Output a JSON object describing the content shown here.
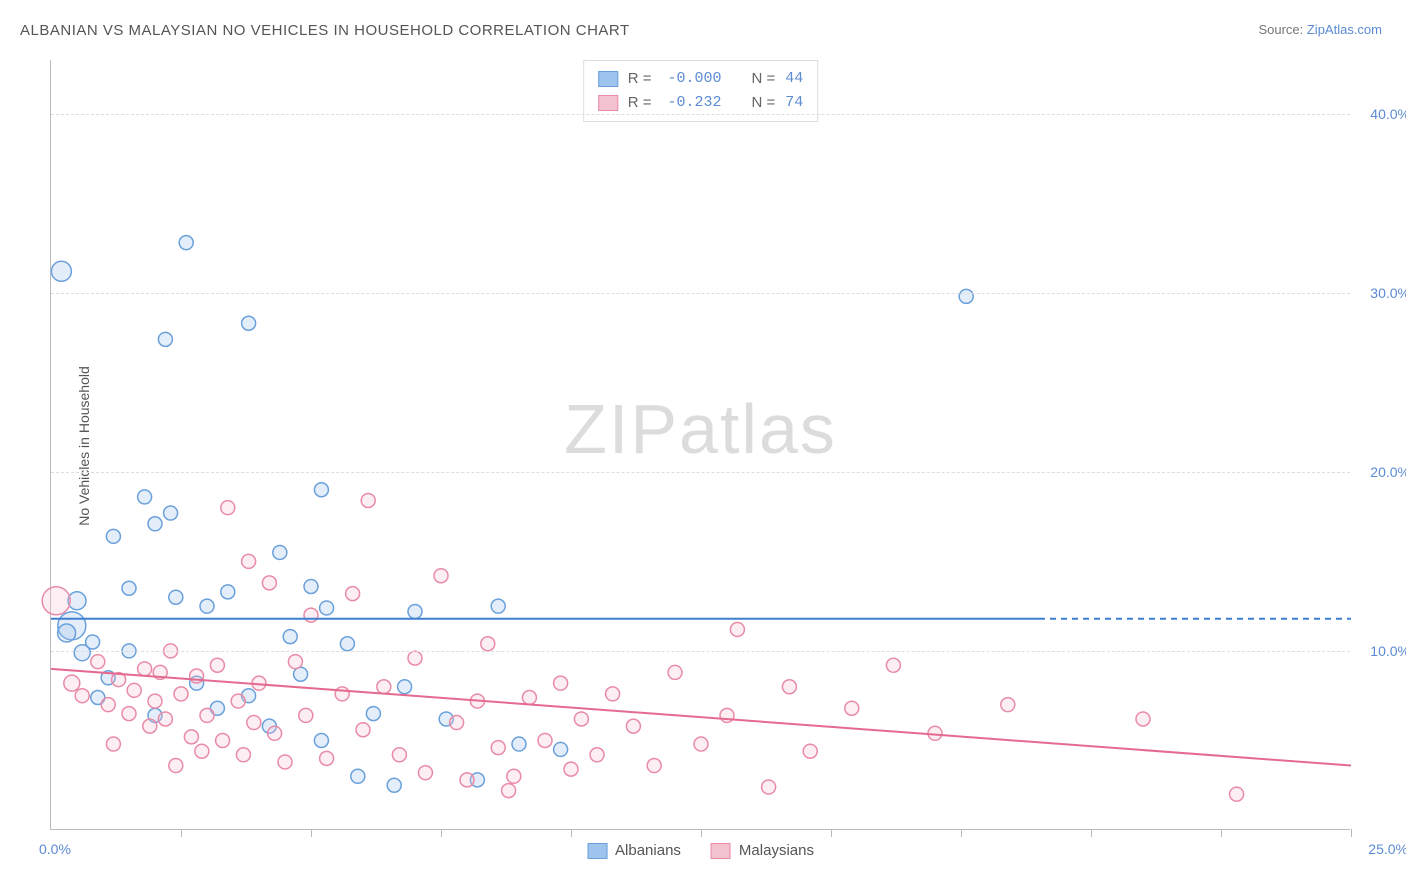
{
  "title": "ALBANIAN VS MALAYSIAN NO VEHICLES IN HOUSEHOLD CORRELATION CHART",
  "source_prefix": "Source: ",
  "source_link": "ZipAtlas.com",
  "ylabel": "No Vehicles in Household",
  "watermark_zip": "ZIP",
  "watermark_atlas": "atlas",
  "chart": {
    "type": "scatter",
    "xlim": [
      0,
      25
    ],
    "ylim": [
      0,
      43
    ],
    "x_tick_step": 2.5,
    "y_gridlines": [
      10,
      20,
      30,
      40
    ],
    "y_tick_labels": [
      "10.0%",
      "20.0%",
      "30.0%",
      "40.0%"
    ],
    "x_min_label": "0.0%",
    "x_max_label": "25.0%",
    "background_color": "#ffffff",
    "grid_color": "#dddddd",
    "axis_color": "#bbbbbb",
    "tick_label_color": "#5b8bd4",
    "marker_stroke_width": 1.5,
    "marker_fill_opacity": 0.28,
    "trendline_width": 2,
    "series": [
      {
        "name": "Albanians",
        "color_fill": "#9ec3ec",
        "color_stroke": "#6aa0db",
        "trend_color": "#3f7fd1",
        "R": "-0.000",
        "N": "44",
        "trend": {
          "x1": 0,
          "y1": 11.8,
          "x2": 19,
          "y2": 11.8,
          "dashed_to": 25
        },
        "points": [
          {
            "x": 0.2,
            "y": 31.2,
            "r": 10
          },
          {
            "x": 2.6,
            "y": 32.8,
            "r": 7
          },
          {
            "x": 3.8,
            "y": 28.3,
            "r": 7
          },
          {
            "x": 2.2,
            "y": 27.4,
            "r": 7
          },
          {
            "x": 1.8,
            "y": 18.6,
            "r": 7
          },
          {
            "x": 2.3,
            "y": 17.7,
            "r": 7
          },
          {
            "x": 2.0,
            "y": 17.1,
            "r": 7
          },
          {
            "x": 1.2,
            "y": 16.4,
            "r": 7
          },
          {
            "x": 0.5,
            "y": 12.8,
            "r": 9
          },
          {
            "x": 0.4,
            "y": 11.4,
            "r": 14
          },
          {
            "x": 0.6,
            "y": 9.9,
            "r": 8
          },
          {
            "x": 0.3,
            "y": 11.0,
            "r": 9
          },
          {
            "x": 0.8,
            "y": 10.5,
            "r": 7
          },
          {
            "x": 1.5,
            "y": 10.0,
            "r": 7
          },
          {
            "x": 1.1,
            "y": 8.5,
            "r": 7
          },
          {
            "x": 2.4,
            "y": 13.0,
            "r": 7
          },
          {
            "x": 3.0,
            "y": 12.5,
            "r": 7
          },
          {
            "x": 3.4,
            "y": 13.3,
            "r": 7
          },
          {
            "x": 4.4,
            "y": 15.5,
            "r": 7
          },
          {
            "x": 5.2,
            "y": 19.0,
            "r": 7
          },
          {
            "x": 5.0,
            "y": 13.6,
            "r": 7
          },
          {
            "x": 5.3,
            "y": 12.4,
            "r": 7
          },
          {
            "x": 5.7,
            "y": 10.4,
            "r": 7
          },
          {
            "x": 4.8,
            "y": 8.7,
            "r": 7
          },
          {
            "x": 3.8,
            "y": 7.5,
            "r": 7
          },
          {
            "x": 4.2,
            "y": 5.8,
            "r": 7
          },
          {
            "x": 5.2,
            "y": 5.0,
            "r": 7
          },
          {
            "x": 5.9,
            "y": 3.0,
            "r": 7
          },
          {
            "x": 6.2,
            "y": 6.5,
            "r": 7
          },
          {
            "x": 6.6,
            "y": 2.5,
            "r": 7
          },
          {
            "x": 6.8,
            "y": 8.0,
            "r": 7
          },
          {
            "x": 7.0,
            "y": 12.2,
            "r": 7
          },
          {
            "x": 7.6,
            "y": 6.2,
            "r": 7
          },
          {
            "x": 8.2,
            "y": 2.8,
            "r": 7
          },
          {
            "x": 8.6,
            "y": 12.5,
            "r": 7
          },
          {
            "x": 9.0,
            "y": 4.8,
            "r": 7
          },
          {
            "x": 9.8,
            "y": 4.5,
            "r": 7
          },
          {
            "x": 2.8,
            "y": 8.2,
            "r": 7
          },
          {
            "x": 2.0,
            "y": 6.4,
            "r": 7
          },
          {
            "x": 3.2,
            "y": 6.8,
            "r": 7
          },
          {
            "x": 4.6,
            "y": 10.8,
            "r": 7
          },
          {
            "x": 17.6,
            "y": 29.8,
            "r": 7
          },
          {
            "x": 1.5,
            "y": 13.5,
            "r": 7
          },
          {
            "x": 0.9,
            "y": 7.4,
            "r": 7
          }
        ]
      },
      {
        "name": "Malaysians",
        "color_fill": "#f4c1cf",
        "color_stroke": "#e98ba7",
        "trend_color": "#e46a8f",
        "R": "-0.232",
        "N": "74",
        "trend": {
          "x1": 0,
          "y1": 9.0,
          "x2": 25,
          "y2": 3.6
        },
        "points": [
          {
            "x": 0.1,
            "y": 12.8,
            "r": 14
          },
          {
            "x": 0.4,
            "y": 8.2,
            "r": 8
          },
          {
            "x": 0.6,
            "y": 7.5,
            "r": 7
          },
          {
            "x": 0.9,
            "y": 9.4,
            "r": 7
          },
          {
            "x": 1.1,
            "y": 7.0,
            "r": 7
          },
          {
            "x": 1.3,
            "y": 8.4,
            "r": 7
          },
          {
            "x": 1.5,
            "y": 6.5,
            "r": 7
          },
          {
            "x": 1.6,
            "y": 7.8,
            "r": 7
          },
          {
            "x": 1.8,
            "y": 9.0,
            "r": 7
          },
          {
            "x": 1.9,
            "y": 5.8,
            "r": 7
          },
          {
            "x": 2.0,
            "y": 7.2,
            "r": 7
          },
          {
            "x": 2.1,
            "y": 8.8,
            "r": 7
          },
          {
            "x": 2.2,
            "y": 6.2,
            "r": 7
          },
          {
            "x": 2.3,
            "y": 10.0,
            "r": 7
          },
          {
            "x": 2.5,
            "y": 7.6,
            "r": 7
          },
          {
            "x": 2.7,
            "y": 5.2,
            "r": 7
          },
          {
            "x": 2.8,
            "y": 8.6,
            "r": 7
          },
          {
            "x": 2.9,
            "y": 4.4,
            "r": 7
          },
          {
            "x": 3.0,
            "y": 6.4,
            "r": 7
          },
          {
            "x": 3.2,
            "y": 9.2,
            "r": 7
          },
          {
            "x": 3.3,
            "y": 5.0,
            "r": 7
          },
          {
            "x": 3.4,
            "y": 18.0,
            "r": 7
          },
          {
            "x": 3.6,
            "y": 7.2,
            "r": 7
          },
          {
            "x": 3.7,
            "y": 4.2,
            "r": 7
          },
          {
            "x": 3.8,
            "y": 15.0,
            "r": 7
          },
          {
            "x": 3.9,
            "y": 6.0,
            "r": 7
          },
          {
            "x": 4.0,
            "y": 8.2,
            "r": 7
          },
          {
            "x": 4.2,
            "y": 13.8,
            "r": 7
          },
          {
            "x": 4.3,
            "y": 5.4,
            "r": 7
          },
          {
            "x": 4.5,
            "y": 3.8,
            "r": 7
          },
          {
            "x": 4.7,
            "y": 9.4,
            "r": 7
          },
          {
            "x": 4.9,
            "y": 6.4,
            "r": 7
          },
          {
            "x": 5.0,
            "y": 12.0,
            "r": 7
          },
          {
            "x": 5.3,
            "y": 4.0,
            "r": 7
          },
          {
            "x": 5.6,
            "y": 7.6,
            "r": 7
          },
          {
            "x": 5.8,
            "y": 13.2,
            "r": 7
          },
          {
            "x": 6.0,
            "y": 5.6,
            "r": 7
          },
          {
            "x": 6.1,
            "y": 18.4,
            "r": 7
          },
          {
            "x": 6.4,
            "y": 8.0,
            "r": 7
          },
          {
            "x": 6.7,
            "y": 4.2,
            "r": 7
          },
          {
            "x": 7.0,
            "y": 9.6,
            "r": 7
          },
          {
            "x": 7.2,
            "y": 3.2,
            "r": 7
          },
          {
            "x": 7.5,
            "y": 14.2,
            "r": 7
          },
          {
            "x": 7.8,
            "y": 6.0,
            "r": 7
          },
          {
            "x": 8.0,
            "y": 2.8,
            "r": 7
          },
          {
            "x": 8.2,
            "y": 7.2,
            "r": 7
          },
          {
            "x": 8.4,
            "y": 10.4,
            "r": 7
          },
          {
            "x": 8.6,
            "y": 4.6,
            "r": 7
          },
          {
            "x": 8.8,
            "y": 2.2,
            "r": 7
          },
          {
            "x": 8.9,
            "y": 3.0,
            "r": 7
          },
          {
            "x": 9.2,
            "y": 7.4,
            "r": 7
          },
          {
            "x": 9.5,
            "y": 5.0,
            "r": 7
          },
          {
            "x": 9.8,
            "y": 8.2,
            "r": 7
          },
          {
            "x": 10.0,
            "y": 3.4,
            "r": 7
          },
          {
            "x": 10.2,
            "y": 6.2,
            "r": 7
          },
          {
            "x": 10.5,
            "y": 4.2,
            "r": 7
          },
          {
            "x": 10.8,
            "y": 7.6,
            "r": 7
          },
          {
            "x": 11.2,
            "y": 5.8,
            "r": 7
          },
          {
            "x": 11.6,
            "y": 3.6,
            "r": 7
          },
          {
            "x": 12.0,
            "y": 8.8,
            "r": 7
          },
          {
            "x": 12.5,
            "y": 4.8,
            "r": 7
          },
          {
            "x": 13.0,
            "y": 6.4,
            "r": 7
          },
          {
            "x": 13.2,
            "y": 11.2,
            "r": 7
          },
          {
            "x": 13.8,
            "y": 2.4,
            "r": 7
          },
          {
            "x": 14.2,
            "y": 8.0,
            "r": 7
          },
          {
            "x": 14.6,
            "y": 4.4,
            "r": 7
          },
          {
            "x": 15.4,
            "y": 6.8,
            "r": 7
          },
          {
            "x": 16.2,
            "y": 9.2,
            "r": 7
          },
          {
            "x": 17.0,
            "y": 5.4,
            "r": 7
          },
          {
            "x": 18.4,
            "y": 7.0,
            "r": 7
          },
          {
            "x": 21.0,
            "y": 6.2,
            "r": 7
          },
          {
            "x": 22.8,
            "y": 2.0,
            "r": 7
          },
          {
            "x": 1.2,
            "y": 4.8,
            "r": 7
          },
          {
            "x": 2.4,
            "y": 3.6,
            "r": 7
          }
        ]
      }
    ]
  },
  "legend_top": {
    "rows": [
      {
        "swatch_fill": "#9ec3ec",
        "swatch_stroke": "#6aa0db",
        "r_label": "R =",
        "r_val": "-0.000",
        "n_label": "N =",
        "n_val": "44"
      },
      {
        "swatch_fill": "#f4c1cf",
        "swatch_stroke": "#e98ba7",
        "r_label": "R =",
        "r_val": "-0.232",
        "n_label": "N =",
        "n_val": "74"
      }
    ]
  },
  "legend_bottom": {
    "items": [
      {
        "swatch_fill": "#9ec3ec",
        "swatch_stroke": "#6aa0db",
        "label": "Albanians"
      },
      {
        "swatch_fill": "#f4c1cf",
        "swatch_stroke": "#e98ba7",
        "label": "Malaysians"
      }
    ]
  }
}
